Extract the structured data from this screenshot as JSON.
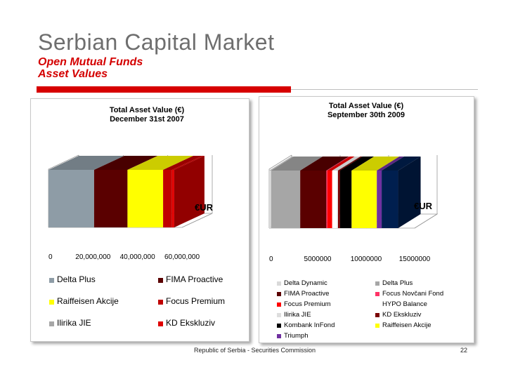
{
  "slide": {
    "title": "Serbian Capital Market",
    "subtitle": "Open Mutual Funds",
    "subtitle2": "Asset Values",
    "footer": "Republic of Serbia - Securities Commission",
    "page_number": "22"
  },
  "colors": {
    "accent_red": "#d70000",
    "title_gray": "#6e6e6e"
  },
  "chart_data": [
    {
      "type": "bar",
      "orientation": "horizontal-stacked-3d",
      "title": "Total Asset Value (€)",
      "subtitle": "December 31st 2007",
      "category_label": "€UR",
      "xlim": [
        0,
        60000000
      ],
      "xticks": [
        "0",
        "20,000,000",
        "40,000,000",
        "60,000,000"
      ],
      "grid": true,
      "legend_position": "bottom",
      "series": [
        {
          "name": "Delta Plus",
          "value": 20500000,
          "color": "#8e9ca6"
        },
        {
          "name": "FIMA Proactive",
          "value": 15000000,
          "color": "#5a0000"
        },
        {
          "name": "Raiffeisen Akcije",
          "value": 16000000,
          "color": "#ffff00"
        },
        {
          "name": "Focus Premium",
          "value": 4000000,
          "color": "#c00000"
        },
        {
          "name": "Ilirika JIE",
          "value": 0,
          "color": "#a6a6a6"
        },
        {
          "name": "KD Ekskluziv",
          "value": 1000000,
          "color": "#e00000"
        }
      ]
    },
    {
      "type": "bar",
      "orientation": "horizontal-stacked-3d",
      "title": "Total Asset Value (€)",
      "subtitle": "September 30th 2009",
      "category_label": "€UR",
      "xlim": [
        0,
        15000000
      ],
      "xticks": [
        "0",
        "5000000",
        "10000000",
        "15000000"
      ],
      "grid": true,
      "legend_position": "bottom",
      "series": [
        {
          "name": "Delta Dynamic",
          "value": 200000,
          "color": "#d9d9d9"
        },
        {
          "name": "Delta Plus",
          "value": 3000000,
          "color": "#a6a6a6"
        },
        {
          "name": "FIMA Proactive",
          "value": 2700000,
          "color": "#5a0000"
        },
        {
          "name": "Focus Novčani Fond",
          "value": 100000,
          "color": "#ff3366"
        },
        {
          "name": "Focus Premium",
          "value": 500000,
          "color": "#ff0000"
        },
        {
          "name": "HYPO Balance",
          "value": 500000,
          "color": "#ffffff"
        },
        {
          "name": "Ilirika JIE",
          "value": 100000,
          "color": "#dddddd"
        },
        {
          "name": "KD Ekskluziv",
          "value": 200000,
          "color": "#7a0000"
        },
        {
          "name": "Kombank InFond",
          "value": 1200000,
          "color": "#000000"
        },
        {
          "name": "Raiffeisen Akcije",
          "value": 2600000,
          "color": "#ffff00"
        },
        {
          "name": "Triumph",
          "value": 500000,
          "color": "#7030a0"
        },
        {
          "name": "",
          "value": 1700000,
          "color": "#001f4f"
        }
      ]
    }
  ]
}
